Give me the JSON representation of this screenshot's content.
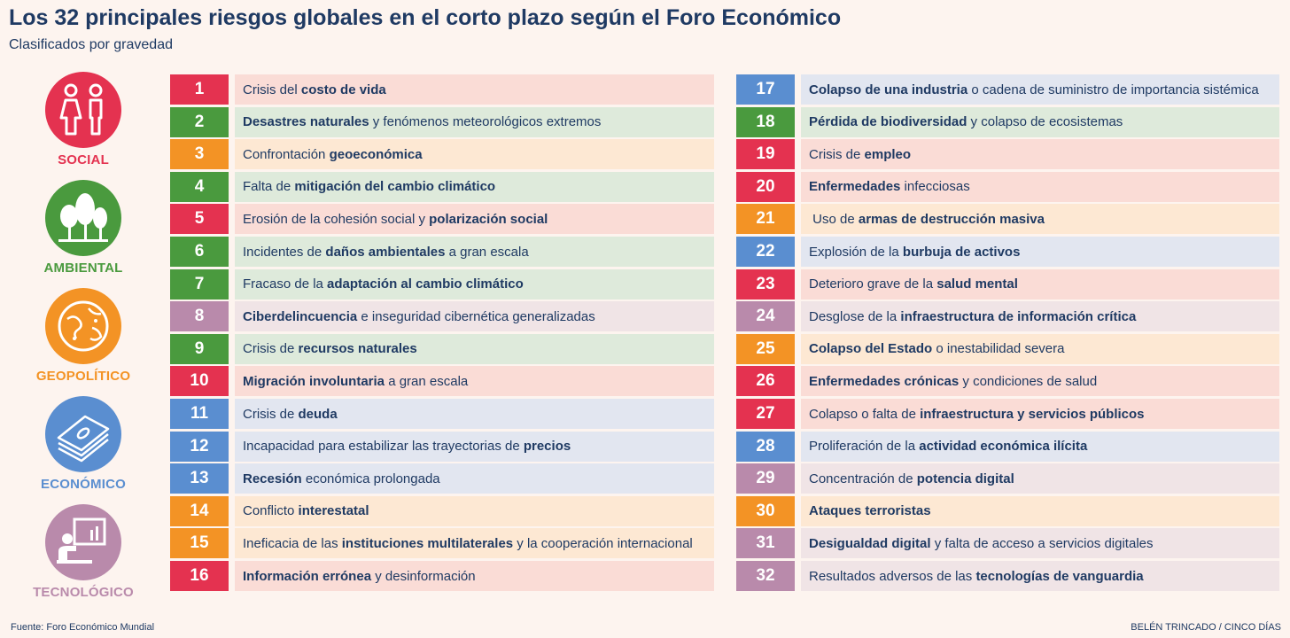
{
  "title": "Los 32 principales riesgos globales en el corto plazo según el Foro Económico",
  "subtitle": "Clasificados por gravedad",
  "source": "Fuente: Foro Económico Mundial",
  "credit": "BELÉN TRINCADO / CINCO DÍAS",
  "colors": {
    "social": "#e43250",
    "ambiental": "#4a9a3e",
    "geopolitico": "#f39325",
    "economico": "#5a8ed0",
    "tecnologico": "#b98aab"
  },
  "light_colors": {
    "social": "#fadcd6",
    "ambiental": "#deeadb",
    "geopolitico": "#fde8d3",
    "economico": "#e2e6f0",
    "tecnologico": "#f0e4e6"
  },
  "categories": [
    {
      "key": "social",
      "label": "SOCIAL",
      "icon": "people-icon"
    },
    {
      "key": "ambiental",
      "label": "AMBIENTAL",
      "icon": "trees-icon"
    },
    {
      "key": "geopolitico",
      "label": "GEOPOLÍTICO",
      "icon": "globe-icon"
    },
    {
      "key": "economico",
      "label": "ECONÓMICO",
      "icon": "money-stack-icon"
    },
    {
      "key": "tecnologico",
      "label": "TECNOLÓGICO",
      "icon": "presentation-icon"
    }
  ],
  "risks": [
    {
      "n": "1",
      "cat": "social",
      "parts": [
        [
          "Crisis del ",
          false
        ],
        [
          "costo de vida",
          true
        ]
      ]
    },
    {
      "n": "2",
      "cat": "ambiental",
      "parts": [
        [
          "Desastres naturales",
          true
        ],
        [
          " y fenómenos meteorológicos extremos",
          false
        ]
      ]
    },
    {
      "n": "3",
      "cat": "geopolitico",
      "parts": [
        [
          "Confrontación ",
          false
        ],
        [
          "geoeconómica",
          true
        ]
      ]
    },
    {
      "n": "4",
      "cat": "ambiental",
      "parts": [
        [
          "Falta de ",
          false
        ],
        [
          "mitigación del cambio climático",
          true
        ]
      ]
    },
    {
      "n": "5",
      "cat": "social",
      "parts": [
        [
          "Erosión de la cohesión social y ",
          false
        ],
        [
          "polarización social",
          true
        ]
      ]
    },
    {
      "n": "6",
      "cat": "ambiental",
      "parts": [
        [
          "Incidentes de ",
          false
        ],
        [
          "daños ambientales",
          true
        ],
        [
          " a gran escala",
          false
        ]
      ]
    },
    {
      "n": "7",
      "cat": "ambiental",
      "parts": [
        [
          "Fracaso de la ",
          false
        ],
        [
          "adaptación al cambio climático",
          true
        ]
      ]
    },
    {
      "n": "8",
      "cat": "tecnologico",
      "parts": [
        [
          "Ciberdelincuencia",
          true
        ],
        [
          " e inseguridad cibernética generalizadas",
          false
        ]
      ]
    },
    {
      "n": "9",
      "cat": "ambiental",
      "parts": [
        [
          "Crisis de ",
          false
        ],
        [
          "recursos naturales",
          true
        ]
      ]
    },
    {
      "n": "10",
      "cat": "social",
      "parts": [
        [
          "Migración involuntaria",
          true
        ],
        [
          " a gran escala",
          false
        ]
      ]
    },
    {
      "n": "11",
      "cat": "economico",
      "parts": [
        [
          "Crisis de ",
          false
        ],
        [
          "deuda",
          true
        ]
      ]
    },
    {
      "n": "12",
      "cat": "economico",
      "parts": [
        [
          "Incapacidad para estabilizar las trayectorias de ",
          false
        ],
        [
          "precios",
          true
        ]
      ]
    },
    {
      "n": "13",
      "cat": "economico",
      "parts": [
        [
          "Recesión",
          true
        ],
        [
          " económica prolongada",
          false
        ]
      ]
    },
    {
      "n": "14",
      "cat": "geopolitico",
      "parts": [
        [
          "Conflicto ",
          false
        ],
        [
          "interestatal",
          true
        ]
      ]
    },
    {
      "n": "15",
      "cat": "geopolitico",
      "parts": [
        [
          "Ineficacia de las ",
          false
        ],
        [
          "instituciones multilaterales",
          true
        ],
        [
          " y la cooperación internacional",
          false
        ]
      ]
    },
    {
      "n": "16",
      "cat": "social",
      "parts": [
        [
          "Información errónea",
          true
        ],
        [
          " y desinformación",
          false
        ]
      ]
    },
    {
      "n": "17",
      "cat": "economico",
      "parts": [
        [
          "Colapso de una industria",
          true
        ],
        [
          " o cadena de suministro de importancia sistémica",
          false
        ]
      ]
    },
    {
      "n": "18",
      "cat": "ambiental",
      "parts": [
        [
          "Pérdida de biodiversidad",
          true
        ],
        [
          " y colapso de ecosistemas",
          false
        ]
      ]
    },
    {
      "n": "19",
      "cat": "social",
      "parts": [
        [
          "Crisis de ",
          false
        ],
        [
          "empleo",
          true
        ]
      ]
    },
    {
      "n": "20",
      "cat": "social",
      "parts": [
        [
          "Enfermedades",
          true
        ],
        [
          " infecciosas",
          false
        ]
      ]
    },
    {
      "n": "21",
      "cat": "geopolitico",
      "parts": [
        [
          " Uso de ",
          false
        ],
        [
          "armas de destrucción masiva",
          true
        ]
      ]
    },
    {
      "n": "22",
      "cat": "economico",
      "parts": [
        [
          "Explosión de la ",
          false
        ],
        [
          "burbuja de activos",
          true
        ]
      ]
    },
    {
      "n": "23",
      "cat": "social",
      "parts": [
        [
          "Deterioro grave de la ",
          false
        ],
        [
          "salud mental",
          true
        ]
      ]
    },
    {
      "n": "24",
      "cat": "tecnologico",
      "parts": [
        [
          "Desglose de la ",
          false
        ],
        [
          "infraestructura de información crítica",
          true
        ]
      ]
    },
    {
      "n": "25",
      "cat": "geopolitico",
      "parts": [
        [
          "Colapso del Estado",
          true
        ],
        [
          " o inestabilidad severa",
          false
        ]
      ]
    },
    {
      "n": "26",
      "cat": "social",
      "parts": [
        [
          "Enfermedades crónicas",
          true
        ],
        [
          " y condiciones de salud",
          false
        ]
      ]
    },
    {
      "n": "27",
      "cat": "social",
      "parts": [
        [
          "Colapso o falta de ",
          false
        ],
        [
          "infraestructura y servicios públicos",
          true
        ]
      ]
    },
    {
      "n": "28",
      "cat": "economico",
      "parts": [
        [
          "Proliferación de la ",
          false
        ],
        [
          "actividad económica ilícita",
          true
        ]
      ]
    },
    {
      "n": "29",
      "cat": "tecnologico",
      "parts": [
        [
          "Concentración de ",
          false
        ],
        [
          "potencia digital",
          true
        ]
      ]
    },
    {
      "n": "30",
      "cat": "geopolitico",
      "parts": [
        [
          "Ataques terroristas",
          true
        ]
      ]
    },
    {
      "n": "31",
      "cat": "tecnologico",
      "parts": [
        [
          "Desigualdad digital",
          true
        ],
        [
          " y falta de acceso a servicios digitales",
          false
        ]
      ]
    },
    {
      "n": "32",
      "cat": "tecnologico",
      "parts": [
        [
          "Resultados adversos de las ",
          false
        ],
        [
          "tecnologías de vanguardia",
          true
        ]
      ]
    }
  ]
}
